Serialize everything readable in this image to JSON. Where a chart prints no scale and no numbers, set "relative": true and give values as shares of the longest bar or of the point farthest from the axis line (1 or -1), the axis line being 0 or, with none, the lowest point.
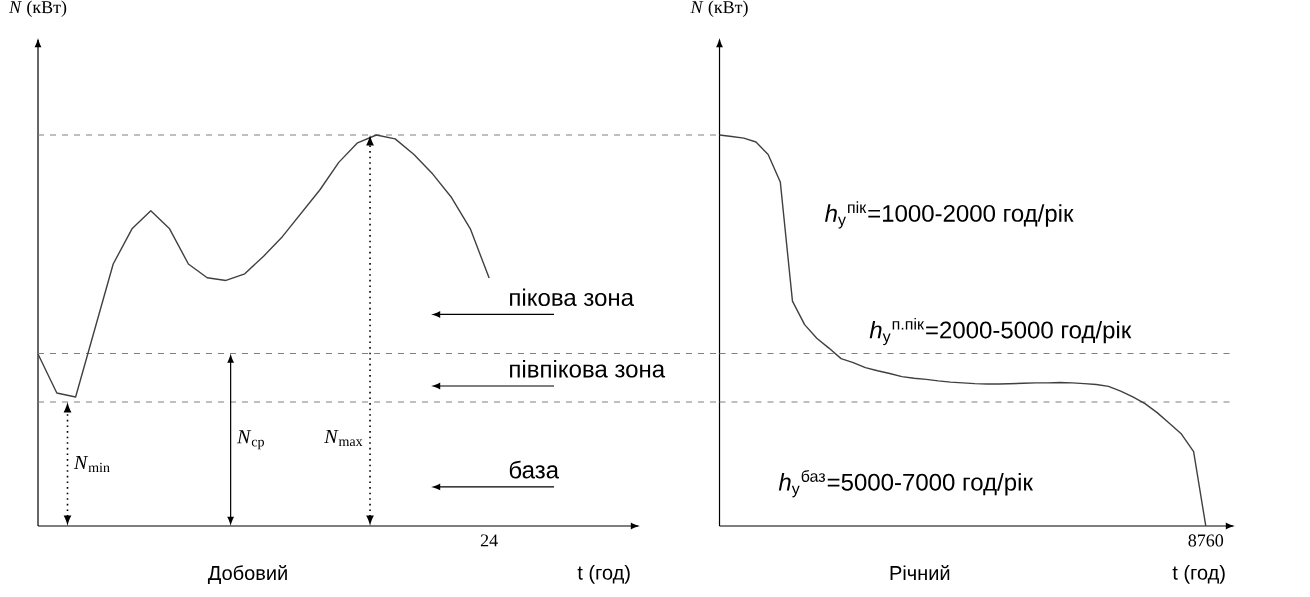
{
  "chart_data": [
    {
      "type": "line",
      "title": "Добовий",
      "xlabel": "t (год)",
      "ylabel": "*N* (кВт)",
      "relative": true,
      "categories": [
        null,
        null,
        null,
        null,
        null,
        null,
        null,
        null,
        null,
        null,
        null,
        null,
        null,
        null,
        null,
        null,
        null,
        null,
        null,
        null,
        null,
        null,
        null,
        null,
        null
      ],
      "values": [
        0.44,
        0.34,
        0.33,
        0.5,
        0.67,
        0.76,
        0.806,
        0.76,
        0.67,
        0.635,
        0.628,
        0.645,
        0.69,
        0.74,
        0.8,
        0.86,
        0.93,
        0.98,
        1,
        0.99,
        0.95,
        0.9,
        0.84,
        0.76,
        0.634
      ],
      "color": "#404040",
      "ref_lines": [
        {
          "axis": "y",
          "value": 1,
          "line_style": "dashed"
        },
        {
          "axis": "y",
          "value": 0.441,
          "line_style": "dashed"
        },
        {
          "axis": "y",
          "value": 0.317,
          "line_style": "dashed"
        }
      ],
      "annotations": [
        "*N*$_{min}$",
        "*N*$_{ср}$",
        "*N*$_{max}$",
        "пікова зона",
        "півпікова зона",
        "база",
        "24"
      ]
    },
    {
      "type": "line",
      "title": "Річний",
      "xlabel": "t (год)",
      "ylabel": "*N* (кВт)",
      "relative": true,
      "categories": [
        null,
        null,
        null,
        null,
        null,
        null,
        null,
        null,
        null,
        null,
        null,
        null,
        null,
        null,
        null,
        null,
        null,
        null,
        null,
        null,
        null,
        null,
        null,
        null,
        null,
        null,
        null,
        null,
        null,
        null,
        null,
        null,
        null,
        null,
        null,
        null,
        null,
        null,
        null,
        null,
        null
      ],
      "values": [
        1,
        0.996,
        0.992,
        0.982,
        0.95,
        0.88,
        0.575,
        0.515,
        0.48,
        0.455,
        0.428,
        0.418,
        0.405,
        0.397,
        0.39,
        0.382,
        0.378,
        0.375,
        0.371,
        0.368,
        0.366,
        0.364,
        0.363,
        0.363,
        0.364,
        0.365,
        0.366,
        0.366,
        0.367,
        0.366,
        0.364,
        0.362,
        0.357,
        0.345,
        0.33,
        0.313,
        0.29,
        0.263,
        0.235,
        0.19,
        0
      ],
      "color": "#404040",
      "ref_lines": [
        {
          "axis": "y",
          "value": 0.441,
          "line_style": "dashed"
        },
        {
          "axis": "y",
          "value": 0.317,
          "line_style": "dashed"
        }
      ],
      "annotations": [
        "*h*$_{y}$$^{пік}$=1000-2000 год/рік",
        "*h*$_{y}$$^{п.пік}$=2000-5000 год/рік",
        "*h*$_{y}$$^{баз}$=5000-7000 год/рік",
        "8760"
      ]
    }
  ]
}
